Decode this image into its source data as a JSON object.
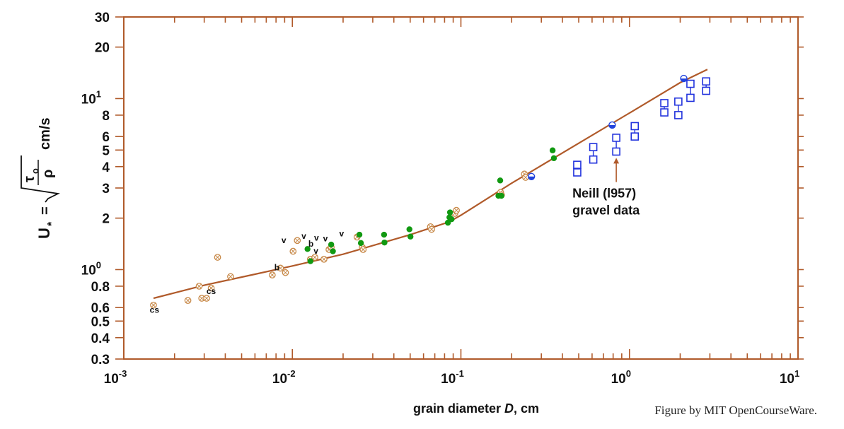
{
  "chart_data": {
    "type": "scatter",
    "x_scale": "log",
    "y_scale": "log",
    "xlim": [
      0.001,
      10
    ],
    "ylim": [
      0.3,
      30
    ],
    "x_major_ticks": [
      {
        "value": 0.001,
        "mantissa": "10",
        "exp": "-3"
      },
      {
        "value": 0.01,
        "mantissa": "10",
        "exp": "-2"
      },
      {
        "value": 0.1,
        "mantissa": "10",
        "exp": "-1"
      },
      {
        "value": 1,
        "mantissa": "10",
        "exp": "0"
      },
      {
        "value": 10,
        "mantissa": "10",
        "exp": "1"
      }
    ],
    "y_ticks": [
      {
        "value": 0.3,
        "label": "0.3"
      },
      {
        "value": 0.4,
        "label": "0.4"
      },
      {
        "value": 0.5,
        "label": "0.5"
      },
      {
        "value": 0.6,
        "label": "0.6"
      },
      {
        "value": 0.8,
        "label": "0.8"
      },
      {
        "value": 1,
        "label": "10",
        "exp": "0"
      },
      {
        "value": 2,
        "label": "2"
      },
      {
        "value": 3,
        "label": "3"
      },
      {
        "value": 4,
        "label": "4"
      },
      {
        "value": 5,
        "label": "5"
      },
      {
        "value": 6,
        "label": "6"
      },
      {
        "value": 8,
        "label": "8"
      },
      {
        "value": 10,
        "label": "10",
        "exp": "1"
      },
      {
        "value": 20,
        "label": "20"
      },
      {
        "value": 30,
        "label": "30"
      }
    ],
    "xlabel": "grain diameter D, cm",
    "xlabel_parts": {
      "prefix": "grain diameter ",
      "var": "D",
      "suffix": ", cm"
    },
    "ylabel": {
      "lhs": "U",
      "sub": "*",
      "eq": "=",
      "num": "τ",
      "num_sub": "o",
      "den": "ρ",
      "units": "cm/s"
    },
    "grid": false,
    "curve": {
      "color": "#b05a2a",
      "x": [
        0.0015,
        0.003,
        0.006,
        0.01,
        0.02,
        0.05,
        0.085,
        0.1,
        0.2,
        0.5,
        1.0,
        2.0,
        2.9
      ],
      "y": [
        0.68,
        0.81,
        0.94,
        1.05,
        1.23,
        1.6,
        1.9,
        2.08,
        3.2,
        5.48,
        8.23,
        12.4,
        14.8
      ]
    },
    "series": [
      {
        "marker": "crossed-circle",
        "color": "#c88a4a",
        "points": [
          [
            0.0015,
            0.62
          ],
          [
            0.0024,
            0.66
          ],
          [
            0.0028,
            0.8
          ],
          [
            0.0029,
            0.68
          ],
          [
            0.0031,
            0.68
          ],
          [
            0.0033,
            0.78
          ],
          [
            0.0036,
            1.18
          ],
          [
            0.0043,
            0.91
          ],
          [
            0.0076,
            0.93
          ],
          [
            0.0085,
            1.02
          ],
          [
            0.0091,
            0.96
          ],
          [
            0.0101,
            1.28
          ],
          [
            0.0107,
            1.48
          ],
          [
            0.0128,
            1.15
          ],
          [
            0.0136,
            1.18
          ],
          [
            0.0154,
            1.15
          ],
          [
            0.0165,
            1.31
          ],
          [
            0.017,
            1.35
          ],
          [
            0.0242,
            1.55
          ],
          [
            0.026,
            1.35
          ],
          [
            0.0263,
            1.31
          ],
          [
            0.066,
            1.78
          ],
          [
            0.067,
            1.72
          ],
          [
            0.092,
            2.13
          ],
          [
            0.094,
            2.22
          ],
          [
            0.172,
            2.83
          ],
          [
            0.174,
            2.73
          ],
          [
            0.238,
            3.62
          ],
          [
            0.242,
            3.46
          ]
        ]
      },
      {
        "marker": "filled-circle",
        "color": "#119911",
        "points": [
          [
            0.0123,
            1.32
          ],
          [
            0.0128,
            1.12
          ],
          [
            0.017,
            1.4
          ],
          [
            0.0174,
            1.28
          ],
          [
            0.025,
            1.6
          ],
          [
            0.0255,
            1.43
          ],
          [
            0.035,
            1.6
          ],
          [
            0.0352,
            1.44
          ],
          [
            0.0495,
            1.72
          ],
          [
            0.0502,
            1.56
          ],
          [
            0.0837,
            1.88
          ],
          [
            0.0855,
            2.02
          ],
          [
            0.0862,
            2.16
          ],
          [
            0.088,
            1.97
          ],
          [
            0.167,
            2.7
          ],
          [
            0.171,
            3.32
          ],
          [
            0.174,
            2.7
          ],
          [
            0.35,
            4.98
          ],
          [
            0.356,
            4.48
          ]
        ]
      },
      {
        "marker": "half-filled-circle",
        "color": "#2244dd",
        "points": [
          [
            0.262,
            3.5
          ],
          [
            0.79,
            7.0
          ],
          [
            2.1,
            13.1
          ]
        ]
      },
      {
        "marker": "open-square",
        "color": "#2233dd",
        "points": [
          [
            0.49,
            4.1
          ],
          [
            0.49,
            3.7
          ],
          [
            0.61,
            5.2
          ],
          [
            0.61,
            4.4
          ],
          [
            0.835,
            5.9
          ],
          [
            0.835,
            4.9
          ],
          [
            1.075,
            6.9
          ],
          [
            1.075,
            6.0
          ],
          [
            1.61,
            9.4
          ],
          [
            1.61,
            8.3
          ],
          [
            1.95,
            9.6
          ],
          [
            1.95,
            8.0
          ],
          [
            2.3,
            12.2
          ],
          [
            2.3,
            10.1
          ],
          [
            2.85,
            12.6
          ],
          [
            2.85,
            11.1
          ]
        ]
      }
    ],
    "point_labels": [
      {
        "text": "cs",
        "x": 0.00152,
        "y": 0.56
      },
      {
        "text": "cs",
        "x": 0.0033,
        "y": 0.72
      },
      {
        "text": "b",
        "x": 0.0081,
        "y": 0.99
      },
      {
        "text": "b",
        "x": 0.0129,
        "y": 1.36
      },
      {
        "text": "v",
        "x": 0.0089,
        "y": 1.43
      },
      {
        "text": "v",
        "x": 0.0117,
        "y": 1.51
      },
      {
        "text": "v",
        "x": 0.0139,
        "y": 1.48
      },
      {
        "text": "v",
        "x": 0.0157,
        "y": 1.46
      },
      {
        "text": "v",
        "x": 0.0196,
        "y": 1.56
      },
      {
        "text": "v",
        "x": 0.0138,
        "y": 1.24
      }
    ],
    "annotation": {
      "line1": "Neill (l957)",
      "line2": "gravel data",
      "arrow_to": [
        0.835,
        4.5
      ],
      "arrow_from": [
        0.835,
        3.25
      ],
      "arrow_color": "#b05a2a"
    }
  },
  "credit": "Figure by MIT OpenCourseWare."
}
